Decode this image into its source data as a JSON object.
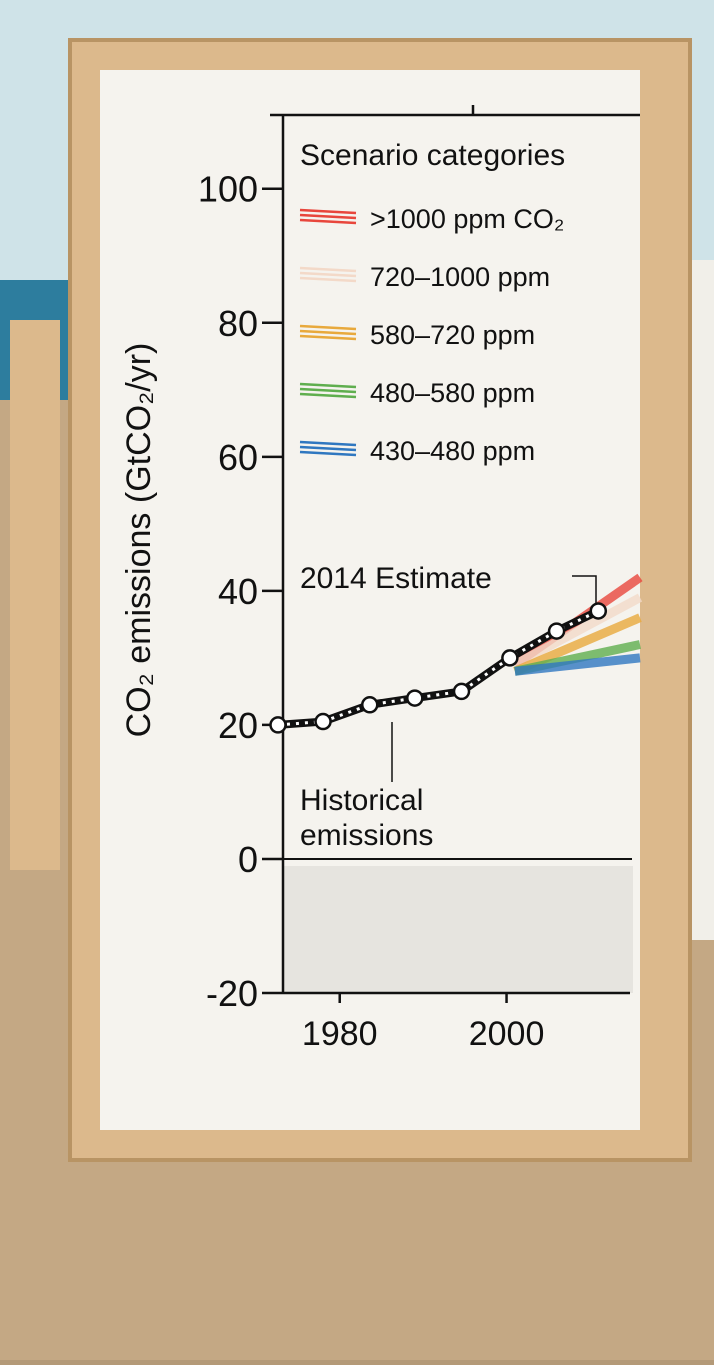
{
  "chart_data": {
    "type": "line",
    "y_label": "CO₂ emissions (GtCO₂/yr)",
    "legend_title": "Scenario categories",
    "xlim": [
      1972,
      2016
    ],
    "xticks": [
      1980,
      2000
    ],
    "ylim": [
      -20,
      111
    ],
    "yticks": [
      -20,
      0,
      20,
      40,
      60,
      80,
      100
    ],
    "series": [
      {
        "color": "#111111",
        "x": [
          1972.6,
          1978,
          1983.6,
          1989,
          1994.6,
          2000.4,
          2006,
          2011
        ],
        "values": [
          20,
          20.5,
          23,
          24,
          25,
          30,
          34,
          37
        ]
      }
    ],
    "scenarios": [
      {
        "name": ">1000 ppm CO₂",
        "color": "#e8463c",
        "x": [
          2001,
          2016
        ],
        "values": [
          29,
          42
        ]
      },
      {
        "name": "720–1000 ppm",
        "color": "#f3d9c8",
        "x": [
          2001,
          2016
        ],
        "values": [
          29,
          39
        ]
      },
      {
        "name": "580–720 ppm",
        "color": "#e8a93c",
        "x": [
          2001,
          2016
        ],
        "values": [
          28,
          36
        ]
      },
      {
        "name": "480–580 ppm",
        "color": "#5fae4e",
        "x": [
          2001,
          2016
        ],
        "values": [
          28,
          32
        ]
      },
      {
        "name": "430–480 ppm",
        "color": "#2f77c0",
        "x": [
          2001,
          2016
        ],
        "values": [
          28,
          30
        ]
      }
    ],
    "annotations": {
      "estimate": "2014 Estimate",
      "historical": [
        "Historical",
        "emissions"
      ]
    }
  }
}
